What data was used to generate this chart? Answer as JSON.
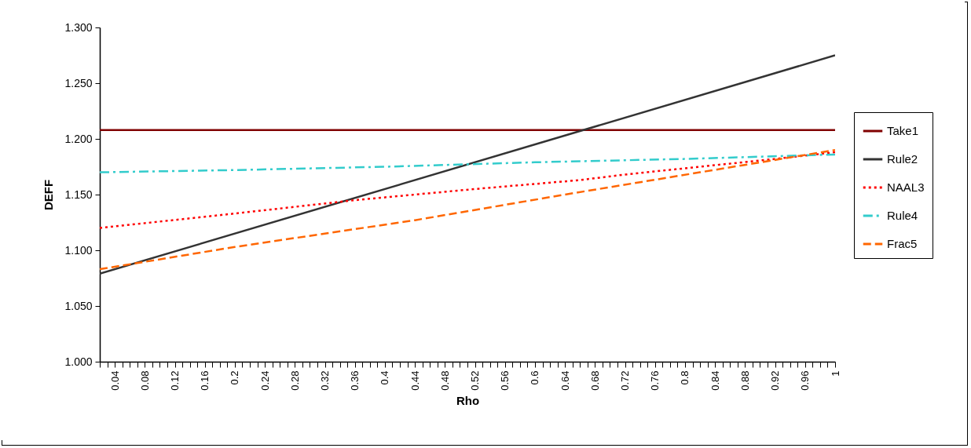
{
  "chart_data": {
    "type": "line",
    "xlabel": "Rho",
    "ylabel": "DEFF",
    "xlim": [
      0.02,
      1
    ],
    "ylim": [
      1,
      1.3
    ],
    "yticks": [
      {
        "value": 1,
        "label": "1.000"
      },
      {
        "value": 1.05,
        "label": "1.050"
      },
      {
        "value": 1.1,
        "label": "1.100"
      },
      {
        "value": 1.15,
        "label": "1.150"
      },
      {
        "value": 1.2,
        "label": "1.200"
      },
      {
        "value": 1.25,
        "label": "1.250"
      },
      {
        "value": 1.3,
        "label": "1.300"
      }
    ],
    "xticks": [
      {
        "value": 0.02,
        "label": null
      },
      {
        "value": 0.03,
        "label": null
      },
      0.04,
      {
        "value": 0.05,
        "label": null
      },
      {
        "value": 0.06,
        "label": null
      },
      {
        "value": 0.07,
        "label": null
      },
      0.08,
      {
        "value": 0.09,
        "label": null
      },
      {
        "value": 0.1,
        "label": null
      },
      {
        "value": 0.11,
        "label": null
      },
      0.12,
      {
        "value": 0.13,
        "label": null
      },
      {
        "value": 0.14,
        "label": null
      },
      {
        "value": 0.15,
        "label": null
      },
      0.16,
      {
        "value": 0.17,
        "label": null
      },
      {
        "value": 0.18,
        "label": null
      },
      {
        "value": 0.19,
        "label": null
      },
      0.2,
      {
        "value": 0.21,
        "label": null
      },
      {
        "value": 0.22,
        "label": null
      },
      {
        "value": 0.23,
        "label": null
      },
      0.24,
      {
        "value": 0.25,
        "label": null
      },
      {
        "value": 0.26,
        "label": null
      },
      {
        "value": 0.27,
        "label": null
      },
      0.28,
      {
        "value": 0.29,
        "label": null
      },
      {
        "value": 0.3,
        "label": null
      },
      {
        "value": 0.31,
        "label": null
      },
      0.32,
      {
        "value": 0.33,
        "label": null
      },
      {
        "value": 0.34,
        "label": null
      },
      {
        "value": 0.35,
        "label": null
      },
      0.36,
      {
        "value": 0.37,
        "label": null
      },
      {
        "value": 0.38,
        "label": null
      },
      {
        "value": 0.39,
        "label": null
      },
      0.4,
      {
        "value": 0.41,
        "label": null
      },
      {
        "value": 0.42,
        "label": null
      },
      {
        "value": 0.43,
        "label": null
      },
      0.44,
      {
        "value": 0.45,
        "label": null
      },
      {
        "value": 0.46,
        "label": null
      },
      {
        "value": 0.47,
        "label": null
      },
      0.48,
      {
        "value": 0.49,
        "label": null
      },
      {
        "value": 0.5,
        "label": null
      },
      {
        "value": 0.51,
        "label": null
      },
      0.52,
      {
        "value": 0.53,
        "label": null
      },
      {
        "value": 0.54,
        "label": null
      },
      {
        "value": 0.55,
        "label": null
      },
      0.56,
      {
        "value": 0.57,
        "label": null
      },
      {
        "value": 0.58,
        "label": null
      },
      {
        "value": 0.59,
        "label": null
      },
      0.6,
      {
        "value": 0.61,
        "label": null
      },
      {
        "value": 0.62,
        "label": null
      },
      {
        "value": 0.63,
        "label": null
      },
      0.64,
      {
        "value": 0.65,
        "label": null
      },
      {
        "value": 0.66,
        "label": null
      },
      {
        "value": 0.67,
        "label": null
      },
      0.68,
      {
        "value": 0.69,
        "label": null
      },
      {
        "value": 0.7,
        "label": null
      },
      {
        "value": 0.71,
        "label": null
      },
      0.72,
      {
        "value": 0.73,
        "label": null
      },
      {
        "value": 0.74,
        "label": null
      },
      {
        "value": 0.75,
        "label": null
      },
      0.76,
      {
        "value": 0.77,
        "label": null
      },
      {
        "value": 0.78,
        "label": null
      },
      {
        "value": 0.79,
        "label": null
      },
      0.8,
      {
        "value": 0.81,
        "label": null
      },
      {
        "value": 0.82,
        "label": null
      },
      {
        "value": 0.83,
        "label": null
      },
      0.84,
      {
        "value": 0.85,
        "label": null
      },
      {
        "value": 0.86,
        "label": null
      },
      {
        "value": 0.87,
        "label": null
      },
      0.88,
      {
        "value": 0.89,
        "label": null
      },
      {
        "value": 0.9,
        "label": null
      },
      {
        "value": 0.91,
        "label": null
      },
      0.92,
      {
        "value": 0.93,
        "label": null
      },
      {
        "value": 0.94,
        "label": null
      },
      {
        "value": 0.95,
        "label": null
      },
      0.96,
      {
        "value": 0.97,
        "label": null
      },
      {
        "value": 0.98,
        "label": null
      },
      {
        "value": 0.99,
        "label": null
      },
      1
    ],
    "grid": false,
    "legend": "right",
    "series": [
      {
        "name": "Take1",
        "color": "#800000",
        "line_style": "solid",
        "x": [
          0.02,
          1
        ],
        "values": [
          1.208,
          1.208
        ]
      },
      {
        "name": "Rule2",
        "color": "#333333",
        "line_style": "solid",
        "x": [
          0.02,
          1
        ],
        "values": [
          1.079,
          1.275
        ]
      },
      {
        "name": "NAAL3",
        "color": "#ff0000",
        "line_style": "dotted",
        "x": [
          0.02,
          0.2,
          0.36,
          0.52,
          0.66,
          0.72,
          0.82,
          0.92,
          1
        ],
        "values": [
          1.12,
          1.133,
          1.145,
          1.155,
          1.163,
          1.168,
          1.175,
          1.182,
          1.188
        ]
      },
      {
        "name": "Rule4",
        "color": "#33cccc",
        "line_style": "dashdot",
        "x": [
          0.02,
          0.2,
          0.4,
          0.6,
          0.8,
          1
        ],
        "values": [
          1.17,
          1.172,
          1.175,
          1.179,
          1.182,
          1.186
        ]
      },
      {
        "name": "Frac5",
        "color": "#ff6600",
        "line_style": "dashed",
        "x": [
          0.02,
          0.2,
          0.44,
          0.64,
          0.82,
          1
        ],
        "values": [
          1.083,
          1.103,
          1.127,
          1.15,
          1.17,
          1.19
        ]
      }
    ]
  }
}
